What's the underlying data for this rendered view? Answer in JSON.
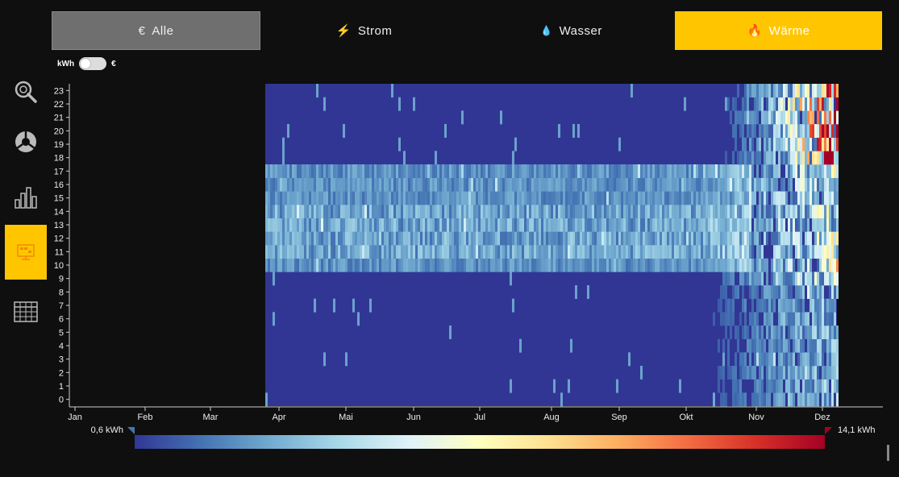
{
  "tabs": [
    {
      "icon": "€",
      "label": "Alle"
    },
    {
      "icon": "⚡",
      "label": "Strom"
    },
    {
      "icon": "💧",
      "label": "Wasser"
    },
    {
      "icon": "🔥",
      "label": "Wärme"
    }
  ],
  "toggle": {
    "left": "kWh",
    "right": "€"
  },
  "sidebar": {
    "items": [
      "analysis-icon",
      "pie-chart-icon",
      "bar-chart-icon",
      "heatmap-icon",
      "table-icon"
    ],
    "active_index": 3
  },
  "colors": {
    "accent": "#ffc600",
    "tab_inactive": "#6f6f6f",
    "background": "#0f0f0f"
  },
  "chart_data": {
    "type": "heatmap",
    "x_categories": [
      "Jan",
      "Feb",
      "Mar",
      "Apr",
      "Mai",
      "Jun",
      "Jul",
      "Aug",
      "Sep",
      "Okt",
      "Nov",
      "Dez"
    ],
    "y_categories": [
      "0",
      "1",
      "2",
      "3",
      "4",
      "5",
      "6",
      "7",
      "8",
      "9",
      "10",
      "11",
      "12",
      "13",
      "14",
      "15",
      "16",
      "17",
      "18",
      "19",
      "20",
      "21",
      "22",
      "23"
    ],
    "data_start": "Mar 28",
    "data_end": "Dez 5",
    "colorbar": {
      "min_label": "0,6 kWh",
      "max_label": "14,1 kWh",
      "min": 0.6,
      "max": 14.1,
      "colors": [
        "#313695",
        "#4575b4",
        "#74add1",
        "#abd9e9",
        "#e0f3f8",
        "#ffffbf",
        "#fee090",
        "#fdae61",
        "#f46d43",
        "#d73027",
        "#a50026"
      ]
    }
  }
}
